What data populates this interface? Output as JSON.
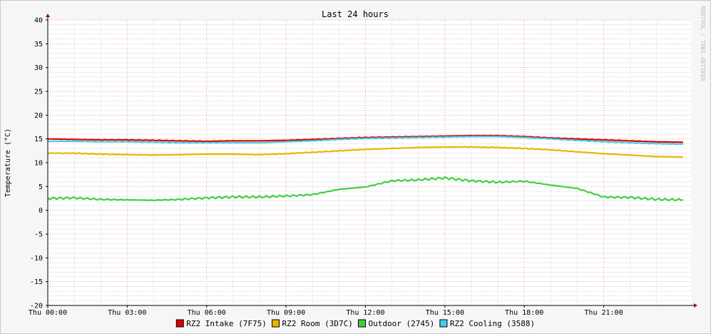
{
  "chart_data": {
    "type": "line",
    "title": "Last 24 hours",
    "ylabel": "Temperature (°C)",
    "xlabel": "",
    "watermark": "RRDTOOL / TOBI OETIKER",
    "ylim": [
      -20,
      40
    ],
    "yticks": [
      "40",
      "35",
      "30",
      "25",
      "20",
      "15",
      "10",
      "5",
      "0",
      "-5",
      "-10",
      "-15",
      "-20"
    ],
    "xlim": [
      0,
      24.3
    ],
    "xticks": [
      {
        "label": "Thu 00:00",
        "hour": 0
      },
      {
        "label": "Thu 03:00",
        "hour": 3
      },
      {
        "label": "Thu 06:00",
        "hour": 6
      },
      {
        "label": "Thu 09:00",
        "hour": 9
      },
      {
        "label": "Thu 12:00",
        "hour": 12
      },
      {
        "label": "Thu 15:00",
        "hour": 15
      },
      {
        "label": "Thu 18:00",
        "hour": 18
      },
      {
        "label": "Thu 21:00",
        "hour": 21
      }
    ],
    "grid": true,
    "legend_position": "bottom",
    "x_hours": [
      0,
      1,
      2,
      3,
      4,
      5,
      6,
      7,
      8,
      9,
      10,
      11,
      12,
      13,
      14,
      15,
      16,
      17,
      18,
      19,
      20,
      21,
      22,
      23,
      24
    ],
    "series": [
      {
        "name": "RZ2 Intake (7F75)",
        "color": "#e00000",
        "values": [
          15.0,
          14.9,
          14.8,
          14.8,
          14.7,
          14.6,
          14.5,
          14.6,
          14.6,
          14.7,
          14.9,
          15.1,
          15.3,
          15.4,
          15.5,
          15.6,
          15.7,
          15.7,
          15.5,
          15.2,
          15.0,
          14.8,
          14.6,
          14.4,
          14.3
        ]
      },
      {
        "name": "RZ2 Room (3D7C)",
        "color": "#e6b800",
        "values": [
          12.0,
          12.0,
          11.8,
          11.7,
          11.6,
          11.7,
          11.8,
          11.8,
          11.7,
          11.9,
          12.2,
          12.5,
          12.8,
          13.0,
          13.2,
          13.3,
          13.3,
          13.2,
          13.0,
          12.7,
          12.3,
          11.9,
          11.6,
          11.3,
          11.2
        ]
      },
      {
        "name": "Outdoor (2745)",
        "color": "#40d040",
        "values": [
          2.5,
          2.6,
          2.3,
          2.2,
          2.1,
          2.3,
          2.6,
          2.8,
          2.8,
          3.0,
          3.3,
          4.4,
          4.9,
          6.2,
          6.4,
          6.8,
          6.2,
          5.9,
          6.1,
          5.3,
          4.6,
          2.8,
          2.7,
          2.3,
          2.2
        ]
      },
      {
        "name": "RZ2 Cooling (3588)",
        "color": "#40d0e8",
        "values": [
          14.5,
          14.5,
          14.4,
          14.4,
          14.3,
          14.2,
          14.2,
          14.2,
          14.2,
          14.4,
          14.6,
          14.9,
          15.1,
          15.2,
          15.3,
          15.4,
          15.5,
          15.5,
          15.3,
          15.0,
          14.7,
          14.4,
          14.2,
          14.0,
          13.9
        ]
      }
    ]
  }
}
